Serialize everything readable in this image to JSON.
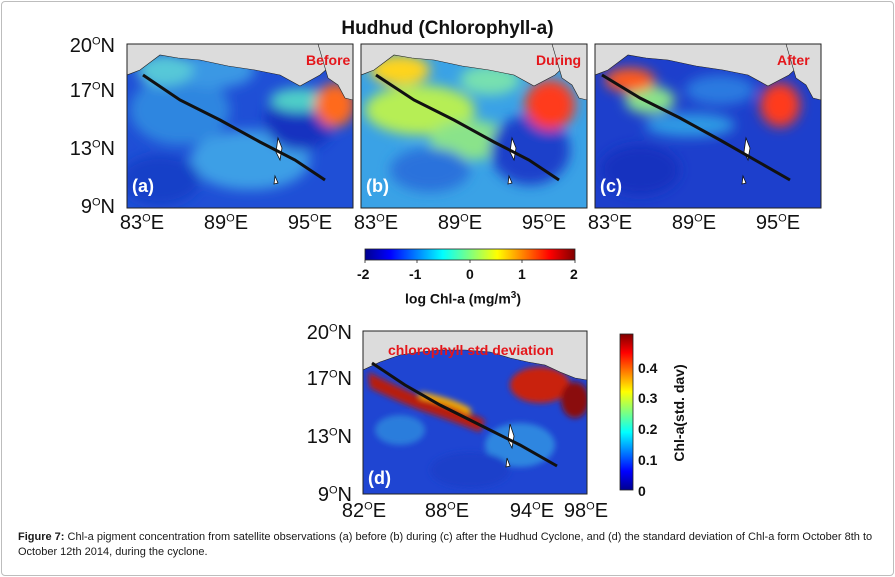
{
  "figure": {
    "title": "Hudhud (Chlorophyll-a)",
    "lat_labels": [
      "20",
      "17",
      "13",
      "9"
    ],
    "lat_suffix": "N",
    "top_lon_labels": [
      "83",
      "89",
      "95"
    ],
    "bottom_lon_labels": [
      "82",
      "88",
      "94",
      "98"
    ],
    "lon_suffix": "E",
    "degree_mark": "O"
  },
  "panels": [
    {
      "label": "(a)",
      "state": "Before"
    },
    {
      "label": "(b)",
      "state": "During"
    },
    {
      "label": "(c)",
      "state": "After"
    },
    {
      "label": "(d)",
      "state": "chlorophyll std deviation"
    }
  ],
  "colorbar_log": {
    "ticks": [
      "-2",
      "-1",
      "0",
      "1",
      "2"
    ],
    "title_prefix": "log Chl-a (mg/m",
    "title_sup": "3",
    "title_suffix": ")"
  },
  "colorbar_std": {
    "ticks": [
      "0.4",
      "0.3",
      "0.2",
      "0.1",
      "0"
    ],
    "title": "Chl-a(std. dav)"
  },
  "caption": {
    "label": "Figure 7:",
    "text": " Chl-a pigment concentration from satellite observations (a) before (b) during (c) after the Hudhud Cyclone, and (d) the standard deviation of Chl-a form October 8th to October 12th 2014, during the cyclone."
  },
  "colors": {
    "land": "#dcdcdc",
    "ocean_low": "#1535c9",
    "track": "#111111",
    "state_label": "#e4161b"
  }
}
